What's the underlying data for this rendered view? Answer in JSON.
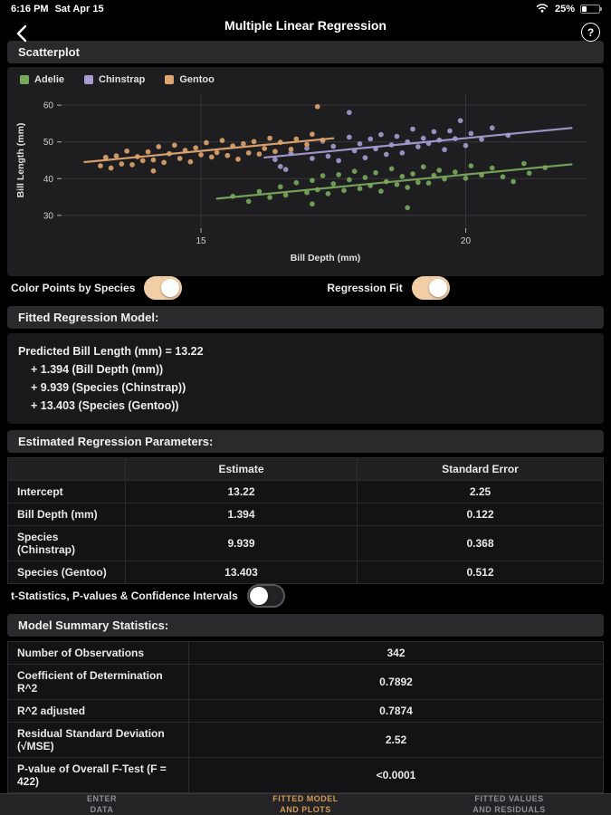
{
  "colors": {
    "accent": "#f2cea6",
    "active_tab": "#d59a52"
  },
  "status_bar": {
    "time": "6:16 PM",
    "date": "Sat Apr 15",
    "battery": "25%"
  },
  "nav": {
    "title": "Multiple Linear Regression",
    "help_label": "?"
  },
  "scatterplot": {
    "title": "Scatterplot"
  },
  "toggles": {
    "color_points": {
      "label": "Color Points by Species",
      "state": "on"
    },
    "regression_fit": {
      "label": "Regression Fit",
      "state": "on"
    },
    "t_stats": {
      "label": "t-Statistics, P-values & Confidence Intervals",
      "state": "off"
    }
  },
  "fitted_model": {
    "title": "Fitted Regression Model:",
    "lines": [
      "Predicted Bill Length (mm) = 13.22",
      "+ 1.394 (Bill Depth (mm))",
      "+ 9.939 (Species (Chinstrap))",
      "+ 13.403 (Species (Gentoo))"
    ]
  },
  "params_table": {
    "title": "Estimated Regression Parameters:",
    "col_headers": [
      "Estimate",
      "Standard Error"
    ],
    "rows": [
      {
        "label": "Intercept",
        "estimate": "13.22",
        "se": "2.25"
      },
      {
        "label": "Bill Depth (mm)",
        "estimate": "1.394",
        "se": "0.122"
      },
      {
        "label": "Species (Chinstrap)",
        "estimate": "9.939",
        "se": "0.368"
      },
      {
        "label": "Species (Gentoo)",
        "estimate": "13.403",
        "se": "0.512"
      }
    ]
  },
  "summary_table": {
    "title": "Model Summary Statistics:",
    "rows": [
      {
        "label": "Number of Observations",
        "value": "342"
      },
      {
        "label": "Coefficient of Determination R^2",
        "value": "0.7892"
      },
      {
        "label": "R^2 adjusted",
        "value": "0.7874"
      },
      {
        "label": "Residual Standard Deviation (√MSE)",
        "value": "2.52"
      },
      {
        "label": "P-value of Overall F-Test (F = 422)",
        "value": "<0.0001"
      }
    ]
  },
  "tab_bar": {
    "tabs": [
      {
        "lines": [
          "ENTER",
          "DATA"
        ],
        "active": false
      },
      {
        "lines": [
          "FITTED MODEL",
          "AND PLOTS"
        ],
        "active": true
      },
      {
        "lines": [
          "FITTED VALUES",
          "AND RESIDUALS"
        ],
        "active": false
      }
    ]
  },
  "chart_data": {
    "type": "scatter",
    "xlabel": "Bill Depth (mm)",
    "ylabel": "Bill Length (mm)",
    "xlim": [
      12.4,
      22.3
    ],
    "ylim": [
      27,
      63
    ],
    "xticks": [
      15,
      20
    ],
    "yticks": [
      30,
      40,
      50,
      60
    ],
    "grid": true,
    "legend_position": "top-left",
    "regression": {
      "intercept": 13.22,
      "slope_bill_depth": 1.394,
      "chinstrap_offset": 9.939,
      "gentoo_offset": 13.403
    },
    "series": [
      {
        "name": "Adelie",
        "color": "#79a85e",
        "fit": {
          "x": [
            15.3,
            22.0
          ],
          "y": [
            34.55,
            43.9
          ]
        },
        "points": [
          [
            15.6,
            35.2
          ],
          [
            15.9,
            33.8
          ],
          [
            16.1,
            36.5
          ],
          [
            16.3,
            34.9
          ],
          [
            16.5,
            37.8
          ],
          [
            16.6,
            35.5
          ],
          [
            16.8,
            38.9
          ],
          [
            17.0,
            36.2
          ],
          [
            17.1,
            33.1
          ],
          [
            17.1,
            39.5
          ],
          [
            17.2,
            37.0
          ],
          [
            17.3,
            40.8
          ],
          [
            17.4,
            35.9
          ],
          [
            17.5,
            38.6
          ],
          [
            17.6,
            41.1
          ],
          [
            17.7,
            36.8
          ],
          [
            17.8,
            39.7
          ],
          [
            17.9,
            42.0
          ],
          [
            18.0,
            37.3
          ],
          [
            18.1,
            40.3
          ],
          [
            18.2,
            38.1
          ],
          [
            18.3,
            41.6
          ],
          [
            18.4,
            36.6
          ],
          [
            18.5,
            39.2
          ],
          [
            18.6,
            42.7
          ],
          [
            18.7,
            38.4
          ],
          [
            18.8,
            40.6
          ],
          [
            18.9,
            32.1
          ],
          [
            18.9,
            37.6
          ],
          [
            19.0,
            41.3
          ],
          [
            19.1,
            39.0
          ],
          [
            19.2,
            43.2
          ],
          [
            19.3,
            38.8
          ],
          [
            19.4,
            40.9
          ],
          [
            19.5,
            42.3
          ],
          [
            19.6,
            39.9
          ],
          [
            19.8,
            41.8
          ],
          [
            20.0,
            40.1
          ],
          [
            20.1,
            43.5
          ],
          [
            20.3,
            41.0
          ],
          [
            20.5,
            42.9
          ],
          [
            20.7,
            40.5
          ],
          [
            20.9,
            39.2
          ],
          [
            21.1,
            44.1
          ],
          [
            21.2,
            41.5
          ],
          [
            21.5,
            43.0
          ]
        ]
      },
      {
        "name": "Chinstrap",
        "color": "#a79bd2",
        "fit": {
          "x": [
            16.2,
            22.0
          ],
          "y": [
            45.75,
            53.8
          ]
        },
        "points": [
          [
            16.4,
            45.2
          ],
          [
            16.5,
            43.3
          ],
          [
            16.6,
            42.5
          ],
          [
            16.7,
            46.9
          ],
          [
            17.0,
            48.3
          ],
          [
            17.1,
            45.5
          ],
          [
            17.3,
            50.2
          ],
          [
            17.4,
            46.1
          ],
          [
            17.5,
            48.8
          ],
          [
            17.6,
            44.9
          ],
          [
            17.8,
            51.3
          ],
          [
            17.8,
            58.0
          ],
          [
            17.9,
            47.6
          ],
          [
            18.0,
            49.5
          ],
          [
            18.1,
            45.7
          ],
          [
            18.2,
            50.8
          ],
          [
            18.3,
            48.1
          ],
          [
            18.4,
            52.0
          ],
          [
            18.5,
            46.6
          ],
          [
            18.6,
            49.2
          ],
          [
            18.7,
            51.5
          ],
          [
            18.8,
            47.0
          ],
          [
            18.9,
            50.0
          ],
          [
            19.0,
            53.5
          ],
          [
            19.1,
            48.7
          ],
          [
            19.2,
            51.0
          ],
          [
            19.3,
            49.6
          ],
          [
            19.4,
            52.8
          ],
          [
            19.5,
            50.5
          ],
          [
            19.6,
            47.9
          ],
          [
            19.7,
            53.0
          ],
          [
            19.8,
            50.9
          ],
          [
            19.9,
            55.8
          ],
          [
            20.0,
            49.0
          ],
          [
            20.1,
            52.3
          ],
          [
            20.3,
            50.7
          ],
          [
            20.5,
            53.8
          ],
          [
            20.8,
            51.8
          ]
        ]
      },
      {
        "name": "Gentoo",
        "color": "#e0a570",
        "fit": {
          "x": [
            12.8,
            17.5
          ],
          "y": [
            44.5,
            51.0
          ]
        },
        "points": [
          [
            13.1,
            43.5
          ],
          [
            13.2,
            45.8
          ],
          [
            13.3,
            42.9
          ],
          [
            13.4,
            46.2
          ],
          [
            13.5,
            44.0
          ],
          [
            13.6,
            47.5
          ],
          [
            13.7,
            43.8
          ],
          [
            13.8,
            46.0
          ],
          [
            13.9,
            44.9
          ],
          [
            14.0,
            47.3
          ],
          [
            14.1,
            42.1
          ],
          [
            14.1,
            45.1
          ],
          [
            14.2,
            48.7
          ],
          [
            14.3,
            44.4
          ],
          [
            14.4,
            46.8
          ],
          [
            14.5,
            49.1
          ],
          [
            14.6,
            45.5
          ],
          [
            14.7,
            47.7
          ],
          [
            14.8,
            44.6
          ],
          [
            14.9,
            48.4
          ],
          [
            15.0,
            46.5
          ],
          [
            15.1,
            49.8
          ],
          [
            15.2,
            45.9
          ],
          [
            15.3,
            47.1
          ],
          [
            15.4,
            50.4
          ],
          [
            15.5,
            46.3
          ],
          [
            15.6,
            48.9
          ],
          [
            15.7,
            45.3
          ],
          [
            15.8,
            49.5
          ],
          [
            15.9,
            47.0
          ],
          [
            16.0,
            50.1
          ],
          [
            16.1,
            46.7
          ],
          [
            16.2,
            48.2
          ],
          [
            16.3,
            51.0
          ],
          [
            16.4,
            47.4
          ],
          [
            16.5,
            49.9
          ],
          [
            16.7,
            48.0
          ],
          [
            16.8,
            50.8
          ],
          [
            17.0,
            49.3
          ],
          [
            17.1,
            52.1
          ],
          [
            17.2,
            59.6
          ],
          [
            17.3,
            50.5
          ]
        ]
      }
    ]
  }
}
